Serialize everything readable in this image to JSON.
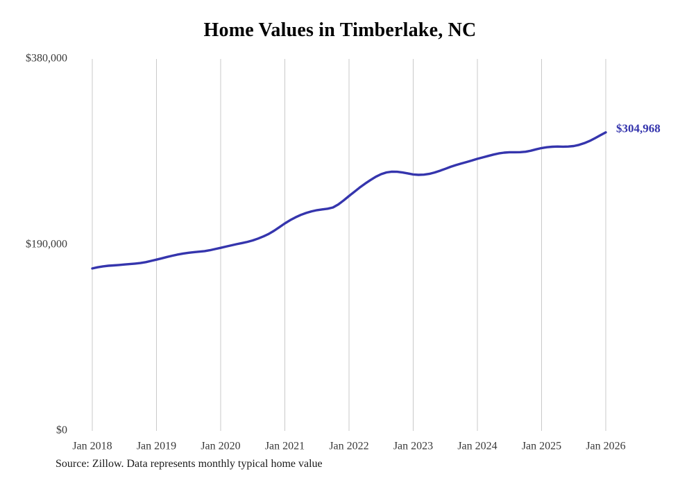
{
  "chart": {
    "title": "Home Values in Timberlake, NC",
    "source_note": "Source: Zillow. Data represents monthly typical home value",
    "end_label": "$304,968"
  },
  "colors": {
    "line": "#3535ad",
    "grid": "#c9c9c9",
    "axis_text": "#3a3a3a",
    "title_text": "#000000",
    "end_label_text": "#3535ad"
  },
  "chart_data": {
    "type": "line",
    "title": "Home Values in Timberlake, NC",
    "xlabel": "",
    "ylabel": "",
    "ylim": [
      0,
      380000
    ],
    "grid": "vertical-only",
    "legend": false,
    "y_ticks": [
      {
        "value": 0,
        "label": "$0"
      },
      {
        "value": 190000,
        "label": "$190,000"
      },
      {
        "value": 380000,
        "label": "$380,000"
      }
    ],
    "x_ticks": [
      "Jan 2018",
      "Jan 2019",
      "Jan 2020",
      "Jan 2021",
      "Jan 2022",
      "Jan 2023",
      "Jan 2024",
      "Jan 2025",
      "Jan 2026"
    ],
    "x_start_month": "2018-01",
    "x_end_month": "2026-01",
    "final_value": 304968,
    "series": [
      {
        "name": "Typical home value",
        "monthly_values": [
          166000,
          167200,
          168100,
          168700,
          169100,
          169500,
          170000,
          170400,
          170900,
          171500,
          172400,
          173700,
          175000,
          176300,
          177700,
          179000,
          180200,
          181200,
          182000,
          182600,
          183100,
          183700,
          184600,
          185800,
          187000,
          188300,
          189600,
          190800,
          191900,
          193100,
          194600,
          196500,
          198700,
          201300,
          204500,
          208200,
          212000,
          215300,
          218200,
          220700,
          222700,
          224300,
          225500,
          226300,
          227000,
          228300,
          231400,
          235500,
          240000,
          244300,
          248600,
          252600,
          256200,
          259600,
          262300,
          264100,
          264900,
          264700,
          264000,
          263100,
          262000,
          261600,
          261800,
          262600,
          264000,
          265800,
          267800,
          269800,
          271600,
          273200,
          274700,
          276300,
          278000,
          279400,
          280900,
          282300,
          283500,
          284300,
          284700,
          284700,
          284800,
          285200,
          286300,
          287700,
          289000,
          289800,
          290300,
          290500,
          290400,
          290500,
          291000,
          292200,
          294000,
          296300,
          299100,
          302100,
          304968
        ]
      }
    ]
  }
}
